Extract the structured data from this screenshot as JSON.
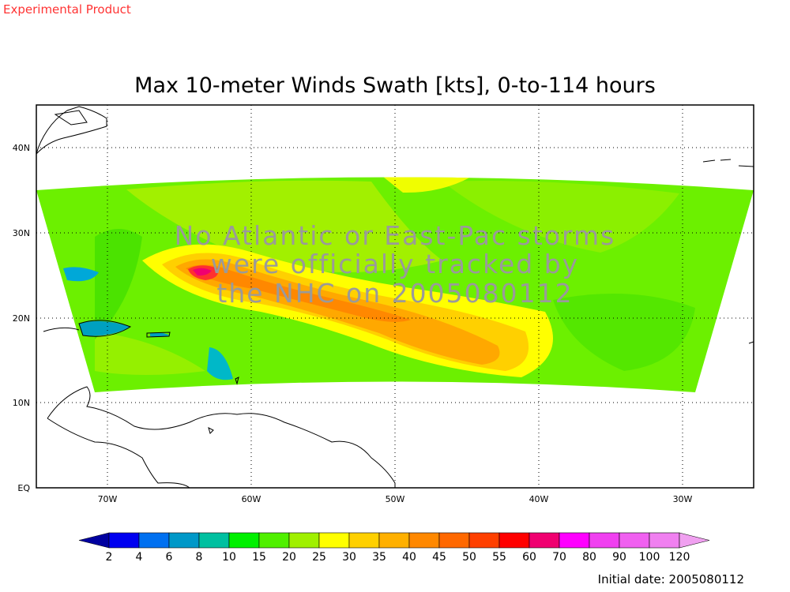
{
  "header": {
    "product_label": "Experimental Product",
    "product_label_color": "#ff3333",
    "title": "Max 10-meter Winds Swath [kts], 0-to-114 hours"
  },
  "map": {
    "lat_labels": [
      "40N",
      "30N",
      "20N",
      "10N",
      "EQ"
    ],
    "lon_labels": [
      "70W",
      "60W",
      "50W",
      "40W",
      "30W"
    ],
    "grid_style": "dotted",
    "watermark_lines": [
      "No Atlantic or East-Pac storms",
      "were officially tracked by",
      "the NHC on 2005080112"
    ],
    "watermark_color": "#9a9a9a"
  },
  "colorbar": {
    "labels": [
      "2",
      "4",
      "6",
      "8",
      "10",
      "15",
      "20",
      "25",
      "30",
      "35",
      "40",
      "45",
      "50",
      "55",
      "60",
      "70",
      "80",
      "90",
      "100",
      "120"
    ],
    "colors": [
      "#0000a0",
      "#0000f0",
      "#0070f0",
      "#0098c8",
      "#00c0a0",
      "#00f000",
      "#50f000",
      "#a0f000",
      "#ffff00",
      "#ffd000",
      "#ffb000",
      "#ff8800",
      "#ff6800",
      "#ff4000",
      "#ff0000",
      "#f00070",
      "#ff00ff",
      "#f040f0",
      "#f060f0",
      "#f080f0",
      "#f0a0f0"
    ]
  },
  "footer": {
    "initial_date": "Initial date: 2005080112"
  }
}
